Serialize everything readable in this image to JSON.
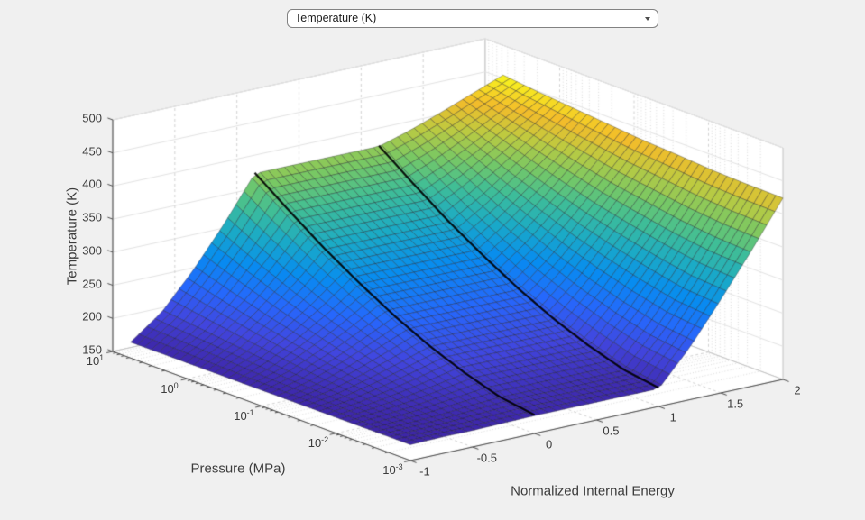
{
  "dropdown": {
    "value": "Temperature (K)",
    "icon": "chevron-down-icon"
  },
  "colors": {
    "figure_background": "#f0f0f0",
    "axes_wall": "#ffffff",
    "grid_major": "#e3e3e3",
    "grid_dashed": "#d2d2d2",
    "grid_dotted": "#dadada",
    "box_edge": "#c2c2c2",
    "ruler": "#4a4a4a",
    "mesh_edge": "rgba(18,18,26,0.62)",
    "contour_line": "#000000"
  },
  "chart_data": {
    "type": "surface",
    "title": "",
    "x_axis": {
      "label": "Pressure (MPa)",
      "scale": "log10",
      "range_log10": [
        -3,
        1
      ],
      "tick_exponents": [
        1,
        0,
        -1,
        -2,
        -3
      ],
      "tick_base": "10",
      "minor_ticks": true
    },
    "y_axis": {
      "label": "Normalized Internal Energy",
      "range": [
        -1,
        2
      ],
      "ticks": [
        -1,
        -0.5,
        0,
        0.5,
        1,
        1.5,
        2
      ]
    },
    "z_axis": {
      "label": "Temperature (K)",
      "range": [
        150,
        500
      ],
      "ticks": [
        150,
        200,
        250,
        300,
        350,
        400,
        450,
        500
      ]
    },
    "colormap": {
      "name": "parula",
      "stops": [
        [
          0.0,
          "#3e26a8"
        ],
        [
          0.13,
          "#4146df"
        ],
        [
          0.25,
          "#2667fc"
        ],
        [
          0.38,
          "#078cf0"
        ],
        [
          0.5,
          "#1aaac7"
        ],
        [
          0.62,
          "#40be96"
        ],
        [
          0.72,
          "#78c864"
        ],
        [
          0.82,
          "#beca40"
        ],
        [
          0.91,
          "#f3bc2a"
        ],
        [
          1.0,
          "#f8f61e"
        ]
      ],
      "color_range_K": [
        174,
        455
      ]
    },
    "contour_lines_at_u": [
      0,
      1
    ],
    "surface": {
      "log10_pressure": [
        -3,
        -2.53,
        -2.06,
        -1.59,
        -1.12,
        -0.65,
        -0.18,
        0.29,
        0.76
      ],
      "normalized_internal_energy": [
        -1,
        -0.75,
        -0.5,
        -0.25,
        0,
        0.25,
        0.5,
        0.75,
        1,
        1.25,
        1.5,
        1.75,
        2
      ],
      "temperature_K": [
        [
          174,
          175,
          175,
          176,
          177,
          177,
          177,
          177,
          177,
          229,
          291,
          356,
          424
        ],
        [
          174,
          176,
          178,
          182,
          185,
          185,
          185,
          185,
          185,
          236,
          295,
          359,
          425
        ],
        [
          174,
          179,
          185,
          193,
          202,
          202,
          202,
          202,
          202,
          250,
          306,
          365,
          427
        ],
        [
          174,
          182,
          194,
          208,
          223,
          223,
          223,
          223,
          223,
          267,
          319,
          374,
          431
        ],
        [
          174,
          186,
          204,
          226,
          249,
          249,
          249,
          249,
          249,
          288,
          334,
          383,
          434
        ],
        [
          174,
          191,
          217,
          246,
          279,
          279,
          279,
          279,
          279,
          313,
          353,
          395,
          439
        ],
        [
          174,
          197,
          230,
          269,
          312,
          312,
          312,
          312,
          312,
          340,
          373,
          408,
          444
        ],
        [
          174,
          203,
          245,
          294,
          349,
          349,
          349,
          349,
          349,
          370,
          395,
          422,
          449
        ],
        [
          174,
          209,
          261,
          321,
          388,
          388,
          388,
          388,
          388,
          402,
          419,
          437,
          455
        ]
      ]
    }
  }
}
